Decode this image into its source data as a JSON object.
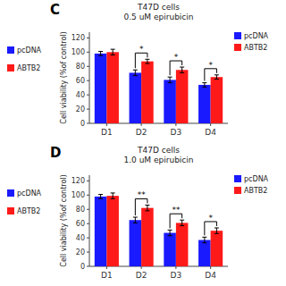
{
  "chart_data": [
    {
      "type": "bar",
      "title": "T47D cells",
      "subtitle": "0.5 uM epirubicin",
      "annotations": [
        "C"
      ],
      "y_label": "Cell viability (%of control)",
      "categories": [
        "D1",
        "D2",
        "D3",
        "D4"
      ],
      "series": [
        {
          "name": "pcDNA",
          "color": "#1a1aff",
          "values": [
            98,
            71,
            61,
            54
          ],
          "errors": [
            3,
            4,
            4,
            3
          ]
        },
        {
          "name": "ABTB2",
          "color": "#ff1a1a",
          "values": [
            100,
            87,
            75,
            65
          ],
          "errors": [
            4,
            3,
            4,
            3
          ]
        }
      ],
      "significance": [
        null,
        "*",
        "*",
        "*"
      ],
      "ylim": [
        0,
        128
      ],
      "yticks": [
        0,
        20,
        40,
        60,
        80,
        100,
        120
      ],
      "grid": false,
      "legend": "right"
    },
    {
      "type": "bar",
      "title": "T47D cells",
      "subtitle": "1.0 uM epirubicin",
      "annotations": [
        "D"
      ],
      "y_label": "Cell viability (%of control)",
      "categories": [
        "D1",
        "D2",
        "D3",
        "D4"
      ],
      "series": [
        {
          "name": "pcDNA",
          "color": "#1a1aff",
          "values": [
            98,
            65,
            47,
            37
          ],
          "errors": [
            3,
            4,
            4,
            4
          ]
        },
        {
          "name": "ABTB2",
          "color": "#ff1a1a",
          "values": [
            99,
            82,
            61,
            50
          ],
          "errors": [
            4,
            4,
            4,
            4
          ]
        }
      ],
      "significance": [
        null,
        "**",
        "**",
        "*"
      ],
      "ylim": [
        0,
        128
      ],
      "yticks": [
        0,
        20,
        40,
        60,
        80,
        100,
        120
      ],
      "grid": false,
      "legend": "right"
    }
  ]
}
